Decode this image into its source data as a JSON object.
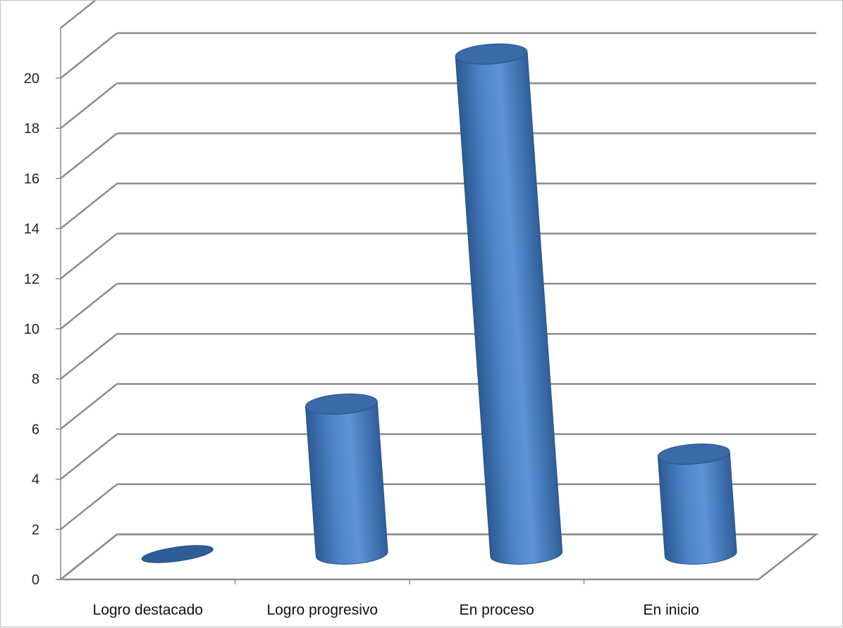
{
  "chart_data": {
    "type": "bar",
    "style": "3d-cylinder",
    "categories": [
      "Logro destacado",
      "Logro progresivo",
      "En proceso",
      "En inicio"
    ],
    "values": [
      0,
      6,
      20,
      4
    ],
    "ylim": [
      0,
      20
    ],
    "yticks": [
      "0",
      "2",
      "4",
      "6",
      "8",
      "10",
      "12",
      "14",
      "16",
      "18",
      "20"
    ],
    "grid": true,
    "bar_color": "#4f81bd"
  }
}
